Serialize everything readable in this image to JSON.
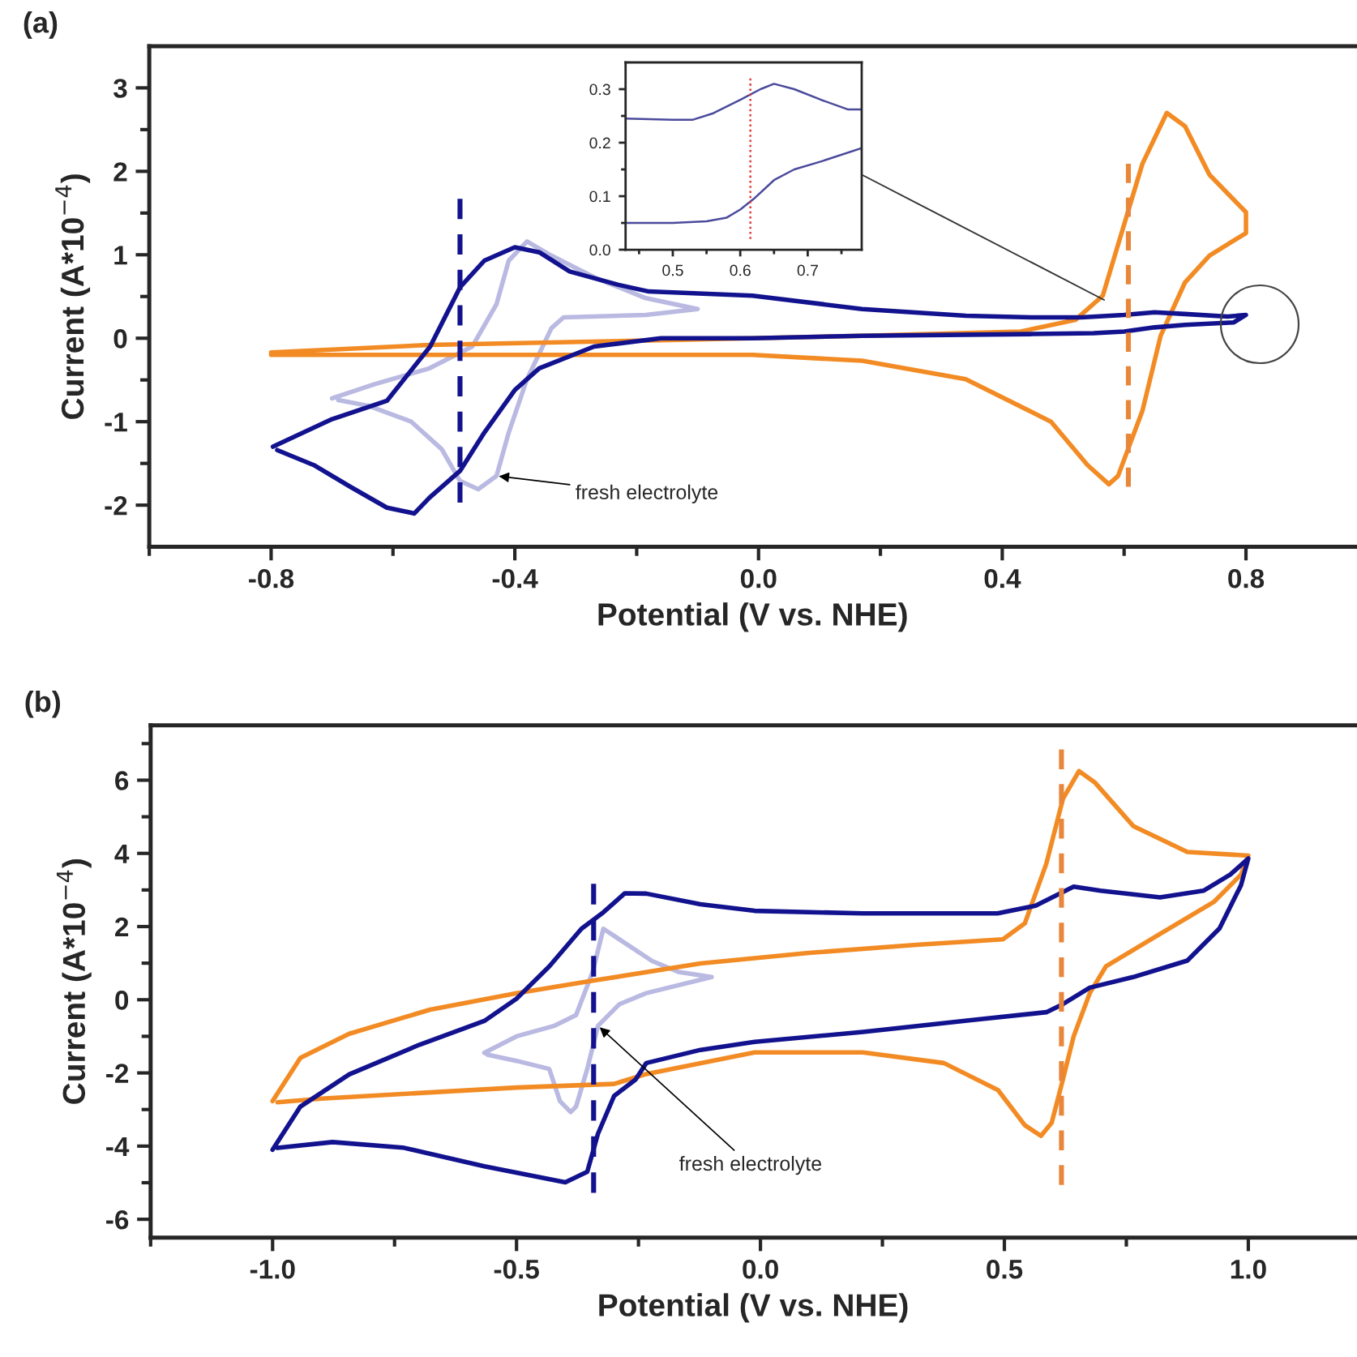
{
  "chart_data": [
    {
      "type": "line",
      "title": "(a)",
      "xlabel": "Potential (V vs. NHE)",
      "ylabel": "Current (A*10$^{−4}$)",
      "xlim": [
        -1.0,
        0.98
      ],
      "ylim": [
        -2.5,
        3.5
      ],
      "xticks": [
        {
          "value": -1.0,
          "label": null
        },
        {
          "value": -0.8,
          "label": "-0.8"
        },
        {
          "value": -0.6,
          "label": null
        },
        {
          "value": -0.4,
          "label": "-0.4"
        },
        {
          "value": -0.2,
          "label": null
        },
        {
          "value": 0.0,
          "label": "0.0"
        },
        {
          "value": 0.2,
          "label": null
        },
        {
          "value": 0.4,
          "label": "0.4"
        },
        {
          "value": 0.6,
          "label": null
        },
        {
          "value": 0.8,
          "label": "0.8"
        }
      ],
      "yticks": [
        -2,
        {
          "value": -1.5,
          "label": null
        },
        -1,
        {
          "value": -0.5,
          "label": null
        },
        0,
        {
          "value": 0.5,
          "label": null
        },
        1,
        {
          "value": 1.5,
          "label": null
        },
        2,
        {
          "value": 2.5,
          "label": null
        },
        3
      ],
      "grid": false,
      "legend": false,
      "series": [
        {
          "color": "#b9b9e2",
          "x": [
            -0.7,
            -0.63,
            -0.54,
            -0.47,
            -0.43,
            -0.41,
            -0.38,
            -0.34,
            -0.27,
            -0.185,
            -0.1,
            -0.185,
            -0.32,
            -0.34,
            -0.38,
            -0.41,
            -0.43,
            -0.46,
            -0.49,
            -0.52,
            -0.57,
            -0.64,
            -0.69
          ],
          "values": [
            -0.72,
            -0.55,
            -0.36,
            -0.1,
            0.41,
            0.93,
            1.16,
            0.99,
            0.73,
            0.48,
            0.35,
            0.28,
            0.25,
            0.12,
            -0.49,
            -1.13,
            -1.65,
            -1.81,
            -1.71,
            -1.33,
            -1.0,
            -0.81,
            -0.74
          ]
        },
        {
          "color": "#f28b24",
          "x": [
            -0.8,
            -0.54,
            -0.13,
            0.17,
            0.43,
            0.52,
            0.565,
            0.59,
            0.63,
            0.67,
            0.7,
            0.74,
            0.8,
            0.8,
            0.74,
            0.7,
            0.66,
            0.63,
            0.59,
            0.575,
            0.54,
            0.48,
            0.34,
            0.17,
            -0.01,
            -0.4,
            -0.8
          ],
          "values": [
            -0.17,
            -0.08,
            -0.02,
            0.03,
            0.08,
            0.22,
            0.51,
            1.12,
            2.09,
            2.7,
            2.54,
            1.96,
            1.51,
            1.26,
            0.99,
            0.67,
            0.03,
            -0.87,
            -1.65,
            -1.75,
            -1.52,
            -1.0,
            -0.49,
            -0.27,
            -0.2,
            -0.2,
            -0.2
          ]
        },
        {
          "color": "#12128f",
          "x": [
            -0.797,
            -0.7,
            -0.61,
            -0.539,
            -0.49,
            -0.45,
            -0.4,
            -0.36,
            -0.31,
            -0.23,
            -0.18,
            -0.01,
            0.17,
            0.34,
            0.45,
            0.53,
            0.6,
            0.65,
            0.7,
            0.77,
            0.8,
            0.78,
            0.7,
            0.65,
            0.6,
            0.55,
            0.45,
            0.17,
            -0.01,
            -0.16,
            -0.27,
            -0.36,
            -0.4,
            -0.45,
            -0.49,
            -0.54,
            -0.565,
            -0.61,
            -0.67,
            -0.73,
            -0.79
          ],
          "values": [
            -1.3,
            -0.97,
            -0.75,
            -0.1,
            0.61,
            0.93,
            1.09,
            1.03,
            0.8,
            0.64,
            0.56,
            0.51,
            0.35,
            0.27,
            0.25,
            0.25,
            0.28,
            0.31,
            0.29,
            0.26,
            0.28,
            0.19,
            0.16,
            0.13,
            0.08,
            0.06,
            0.05,
            0.03,
            0.0,
            0.0,
            -0.1,
            -0.36,
            -0.62,
            -1.13,
            -1.59,
            -1.91,
            -2.1,
            -2.03,
            -1.78,
            -1.52,
            -1.34
          ]
        },
        {
          "color": "#12128f",
          "line_style": "dashed",
          "x": [
            -0.49,
            -0.49
          ],
          "values": [
            1.67,
            -1.97
          ]
        },
        {
          "color": "#e8873a",
          "line_style": "dashed",
          "x": [
            0.607,
            0.607
          ],
          "values": [
            2.09,
            -1.78
          ]
        }
      ],
      "annotations": [
        {
          "text": "fresh electrolyte",
          "x": -0.43,
          "y": -1.65
        }
      ]
    },
    {
      "type": "line",
      "xlim": [
        0.43,
        0.78
      ],
      "ylim": [
        0.0,
        0.35
      ],
      "xticks": [
        {
          "value": 0.45,
          "label": null
        },
        {
          "value": 0.5,
          "label": "0.5"
        },
        {
          "value": 0.55,
          "label": null
        },
        {
          "value": 0.6,
          "label": "0.6"
        },
        {
          "value": 0.65,
          "label": null
        },
        {
          "value": 0.7,
          "label": "0.7"
        },
        {
          "value": 0.75,
          "label": null
        }
      ],
      "yticks": [
        {
          "value": 0.0,
          "label": "0.0"
        },
        {
          "value": 0.05,
          "label": null
        },
        {
          "value": 0.1,
          "label": "0.1"
        },
        {
          "value": 0.15,
          "label": null
        },
        {
          "value": 0.2,
          "label": "0.2"
        },
        {
          "value": 0.25,
          "label": null
        },
        {
          "value": 0.3,
          "label": "0.3"
        }
      ],
      "grid": false,
      "legend": false,
      "series": [
        {
          "color": "#4a4a9c",
          "x": [
            0.43,
            0.5,
            0.53,
            0.56,
            0.6,
            0.63,
            0.65,
            0.68,
            0.72,
            0.76,
            0.78
          ],
          "values": [
            0.245,
            0.243,
            0.243,
            0.255,
            0.28,
            0.3,
            0.31,
            0.3,
            0.28,
            0.262,
            0.262
          ]
        },
        {
          "color": "#4a4a9c",
          "x": [
            0.43,
            0.5,
            0.55,
            0.58,
            0.6,
            0.62,
            0.65,
            0.68,
            0.72,
            0.78
          ],
          "values": [
            0.05,
            0.05,
            0.053,
            0.06,
            0.075,
            0.095,
            0.13,
            0.15,
            0.165,
            0.19
          ]
        },
        {
          "color": "#e03a3a",
          "line_style": "dotted",
          "x": [
            0.615,
            0.615
          ],
          "values": [
            0.32,
            0.02
          ]
        }
      ]
    },
    {
      "type": "line",
      "title": "(b)",
      "xlabel": "Potential (V vs. NHE)",
      "ylabel": "Current (A*10$^{−4}$)",
      "xlim": [
        -1.25,
        1.22
      ],
      "ylim": [
        -6.5,
        7.5
      ],
      "xticks": [
        {
          "value": -1.25,
          "label": null
        },
        {
          "value": -1.0,
          "label": "-1.0"
        },
        {
          "value": -0.75,
          "label": null
        },
        {
          "value": -0.5,
          "label": "-0.5"
        },
        {
          "value": -0.25,
          "label": null
        },
        {
          "value": 0.0,
          "label": "0.0"
        },
        {
          "value": 0.25,
          "label": null
        },
        {
          "value": 0.5,
          "label": "0.5"
        },
        {
          "value": 0.75,
          "label": null
        },
        {
          "value": 1.0,
          "label": "1.0"
        }
      ],
      "yticks": [
        -6,
        {
          "value": -5,
          "label": null
        },
        -4,
        {
          "value": -3,
          "label": null
        },
        -2,
        {
          "value": -1,
          "label": null
        },
        0,
        {
          "value": 1,
          "label": null
        },
        2,
        {
          "value": 3,
          "label": null
        },
        4,
        {
          "value": 5,
          "label": null
        },
        6,
        {
          "value": 7,
          "label": null
        }
      ],
      "grid": false,
      "legend": false,
      "series": [
        {
          "color": "#b9b9e2",
          "x": [
            -0.566,
            -0.5,
            -0.422,
            -0.378,
            -0.344,
            -0.322,
            -0.289,
            -0.222,
            -0.168,
            -0.1,
            -0.234,
            -0.289,
            -0.333,
            -0.355,
            -0.378,
            -0.389,
            -0.411,
            -0.433,
            -0.5,
            -0.56
          ],
          "values": [
            -1.45,
            -1.0,
            -0.71,
            -0.42,
            0.76,
            1.94,
            1.65,
            1.06,
            0.76,
            0.62,
            0.18,
            -0.12,
            -0.71,
            -1.89,
            -2.92,
            -3.07,
            -2.77,
            -1.89,
            -1.67,
            -1.5
          ]
        },
        {
          "color": "#f28b24",
          "x": [
            -1.0,
            -0.943,
            -0.843,
            -0.677,
            -0.5,
            -0.344,
            -0.123,
            0.099,
            0.32,
            0.497,
            0.542,
            0.586,
            0.62,
            0.653,
            0.686,
            0.764,
            0.875,
            1.0,
            0.985,
            0.93,
            0.819,
            0.708,
            0.675,
            0.642,
            0.62,
            0.597,
            0.575,
            0.542,
            0.487,
            0.376,
            0.21,
            -0.012,
            -0.234,
            -0.3,
            -0.5,
            -0.7,
            -0.9,
            -0.99
          ],
          "values": [
            -2.77,
            -1.59,
            -0.93,
            -0.27,
            0.18,
            0.52,
            0.99,
            1.28,
            1.5,
            1.65,
            2.09,
            3.72,
            5.49,
            6.25,
            5.93,
            4.75,
            4.04,
            3.94,
            3.42,
            2.68,
            1.8,
            0.91,
            0.18,
            -1.0,
            -2.18,
            -3.36,
            -3.72,
            -3.43,
            -2.47,
            -1.73,
            -1.44,
            -1.44,
            -2.03,
            -2.3,
            -2.4,
            -2.55,
            -2.7,
            -2.8
          ]
        },
        {
          "color": "#12128f",
          "x": [
            -1.0,
            -0.943,
            -0.843,
            -0.699,
            -0.566,
            -0.5,
            -0.433,
            -0.367,
            -0.322,
            -0.278,
            -0.234,
            -0.123,
            -0.012,
            0.21,
            0.486,
            0.564,
            0.642,
            0.697,
            0.819,
            0.908,
            0.963,
            1.0,
            0.985,
            0.941,
            0.875,
            0.764,
            0.675,
            0.62,
            0.586,
            0.431,
            0.21,
            -0.012,
            -0.123,
            -0.234,
            -0.256,
            -0.3,
            -0.333,
            -0.355,
            -0.4,
            -0.566,
            -0.733,
            -0.877,
            -0.99
          ],
          "values": [
            -4.1,
            -2.92,
            -2.04,
            -1.23,
            -0.58,
            0.03,
            0.91,
            1.94,
            2.39,
            2.91,
            2.9,
            2.61,
            2.43,
            2.36,
            2.36,
            2.57,
            3.09,
            2.98,
            2.8,
            2.98,
            3.42,
            3.86,
            3.13,
            1.95,
            1.07,
            0.62,
            0.33,
            -0.12,
            -0.34,
            -0.56,
            -0.88,
            -1.15,
            -1.37,
            -1.73,
            -2.18,
            -2.63,
            -3.66,
            -4.7,
            -4.99,
            -4.55,
            -4.04,
            -3.89,
            -4.05
          ]
        },
        {
          "color": "#12128f",
          "line_style": "dashed",
          "x": [
            -0.342,
            -0.342
          ],
          "values": [
            3.17,
            -5.28
          ]
        },
        {
          "color": "#e8873a",
          "line_style": "dashed",
          "x": [
            0.617,
            0.617
          ],
          "values": [
            6.84,
            -5.06
          ]
        }
      ],
      "annotations": [
        {
          "text": "fresh electrolyte",
          "x": -0.333,
          "y": -0.71
        }
      ]
    }
  ]
}
